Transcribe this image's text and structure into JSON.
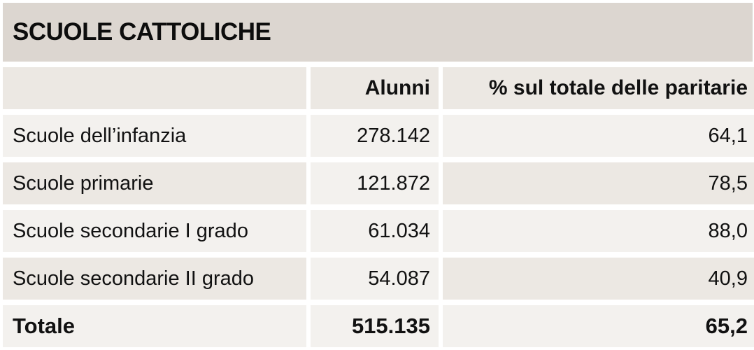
{
  "title": "SCUOLE CATTOLICHE",
  "columns": [
    "",
    "Alunni",
    "% sul totale delle paritarie"
  ],
  "rows": [
    {
      "label": "Scuole dell’infanzia",
      "alunni": "278.142",
      "percent": "64,1"
    },
    {
      "label": "Scuole primarie",
      "alunni": "121.872",
      "percent": "78,5"
    },
    {
      "label": "Scuole secondarie I grado",
      "alunni": "61.034",
      "percent": "88,0"
    },
    {
      "label": "Scuole secondarie II grado",
      "alunni": "54.087",
      "percent": "40,9"
    }
  ],
  "total": {
    "label": "Totale",
    "alunni": "515.135",
    "percent": "65,2"
  },
  "colors": {
    "title_bg": "#dcd6d0",
    "cell_dark": "#ece8e3",
    "cell_light": "#f3f1ee"
  }
}
